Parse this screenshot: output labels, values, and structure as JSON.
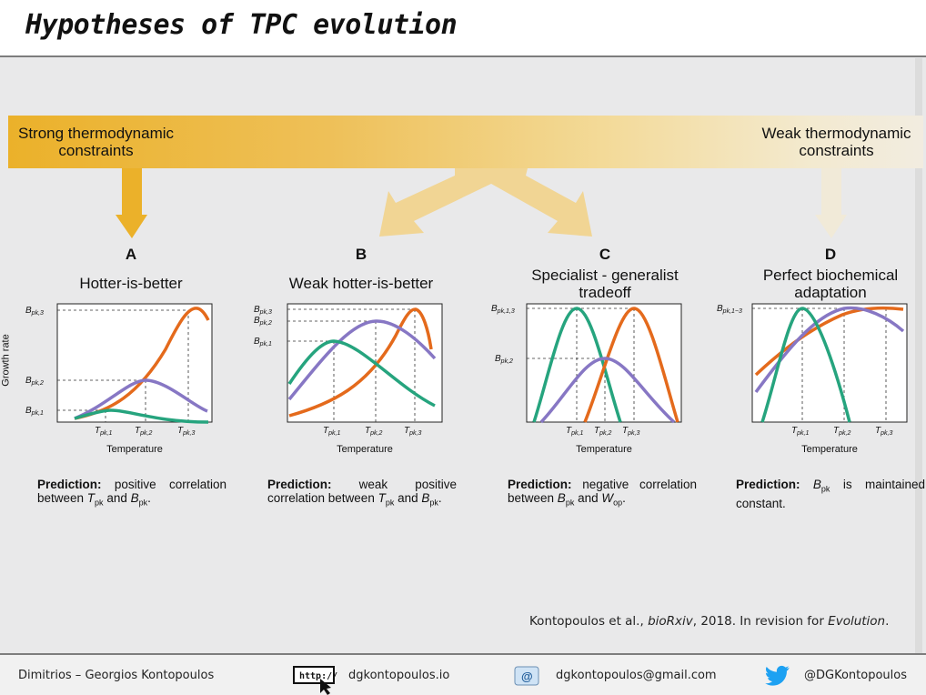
{
  "title": "Hypotheses of TPC evolution",
  "bar": {
    "left_label": "Strong thermodynamic\nconstraints",
    "right_label": "Weak thermodynamic\nconstraints"
  },
  "panels": [
    {
      "letter": "A",
      "title": "Hotter-is-better",
      "y_ticks": [
        "B_pk,3",
        "B_pk,2",
        "B_pk,1"
      ],
      "x_ticks": [
        "T_pk,1",
        "T_pk,2",
        "T_pk,3"
      ],
      "xlabel": "Temperature",
      "prediction_lead": "Prediction:",
      "prediction_parts": [
        " positive correlation between ",
        "T",
        "pk",
        " and ",
        "B",
        "pk",
        "."
      ]
    },
    {
      "letter": "B",
      "title": "Weak hotter-is-better",
      "y_ticks": [
        "B_pk,3",
        "B_pk,2",
        "B_pk,1"
      ],
      "x_ticks": [
        "T_pk,1",
        "T_pk,2",
        "T_pk,3"
      ],
      "xlabel": "Temperature",
      "prediction_lead": "Prediction:",
      "prediction_parts": [
        " weak positive correlation between ",
        "T",
        "pk",
        " and ",
        "B",
        "pk",
        "."
      ]
    },
    {
      "letter": "C",
      "title": "Specialist - generalist\ntradeoff",
      "y_ticks": [
        "B_pk,1,3",
        "B_pk,2"
      ],
      "x_ticks": [
        "T_pk,1",
        "T_pk,2",
        "T_pk,3"
      ],
      "xlabel": "Temperature",
      "prediction_lead": "Prediction:",
      "prediction_parts": [
        " negative correlation between ",
        "B",
        "pk",
        " and ",
        "W",
        "op",
        "."
      ]
    },
    {
      "letter": "D",
      "title": "Perfect biochemical\nadaptation",
      "y_ticks": [
        "B_pk,1−3"
      ],
      "x_ticks": [
        "T_pk,1",
        "T_pk,2",
        "T_pk,3"
      ],
      "xlabel": "Temperature",
      "prediction_lead": "Prediction:",
      "prediction_parts": [
        " ",
        "B",
        "pk",
        " is maintained constant."
      ]
    }
  ],
  "ylabel": "Growth rate",
  "colors": {
    "green": "#26a47e",
    "purple": "#8777c4",
    "orange": "#e46a1c",
    "bar_strong": "#ebb12a",
    "bar_weak": "#f2ece0",
    "twitter": "#1da1f2"
  },
  "citation": {
    "authors": "Kontopoulos et al., ",
    "journal": "bioRxiv",
    "rest": ", 2018. In revision for ",
    "venue": "Evolution",
    "end": "."
  },
  "footer": {
    "name": "Dimitrios – Georgios Kontopoulos",
    "website_icon_text": "http://",
    "website": "dgkontopoulos.io",
    "email": "dgkontopoulos@gmail.com",
    "twitter": "@DGKontopoulos"
  }
}
